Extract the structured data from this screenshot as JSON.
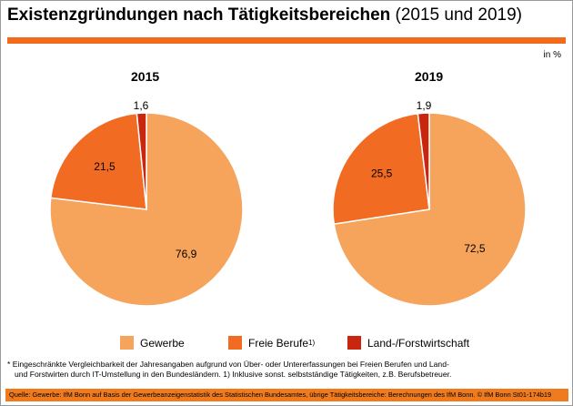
{
  "header": {
    "title_bold": "Existenzgründungen nach Tätigkeitsbereichen",
    "title_normal": " (2015 und 2019)",
    "unit": "in %"
  },
  "colors": {
    "accent_bar": "#f26b1d",
    "gewerbe": "#f6a45c",
    "freie_berufe": "#f26b23",
    "land_forst": "#c9250f",
    "source_bar": "#f07b1e"
  },
  "chart_data": [
    {
      "type": "pie",
      "title": "2015",
      "categories": [
        "Gewerbe",
        "Freie Berufe",
        "Land-/Forstwirtschaft"
      ],
      "values": [
        76.9,
        21.5,
        1.6
      ],
      "labels": [
        "76,9",
        "21,5",
        "1,6"
      ]
    },
    {
      "type": "pie",
      "title": "2019",
      "categories": [
        "Gewerbe",
        "Freie Berufe",
        "Land-/Forstwirtschaft"
      ],
      "values": [
        72.5,
        25.5,
        1.9
      ],
      "labels": [
        "72,5",
        "25,5",
        "1,9"
      ]
    }
  ],
  "legend": {
    "gewerbe": "Gewerbe",
    "freie_berufe": "Freie Berufe",
    "freie_berufe_sup": "1)",
    "land_forst": "Land-/Forstwirtschaft"
  },
  "footnote": {
    "line1": "* Eingeschränkte Vergleichbarkeit der Jahresangaben aufgrund von Über- oder Untererfassungen bei Freien Berufen und Land-",
    "line2": "und Forstwirten durch IT-Umstellung in den Bundesländern.     1) Inklusive sonst. selbstständige Tätigkeiten, z.B. Berufsbetreuer."
  },
  "source": "Quelle: Gewerbe: IfM Bonn auf Basis der Gewerbeanzeigenstatistik des Statistischen Bundesamtes, übrige Tätigkeitsbereiche: Berechnungen des IfM Bonn.    © IfM Bonn  St01-174b19"
}
